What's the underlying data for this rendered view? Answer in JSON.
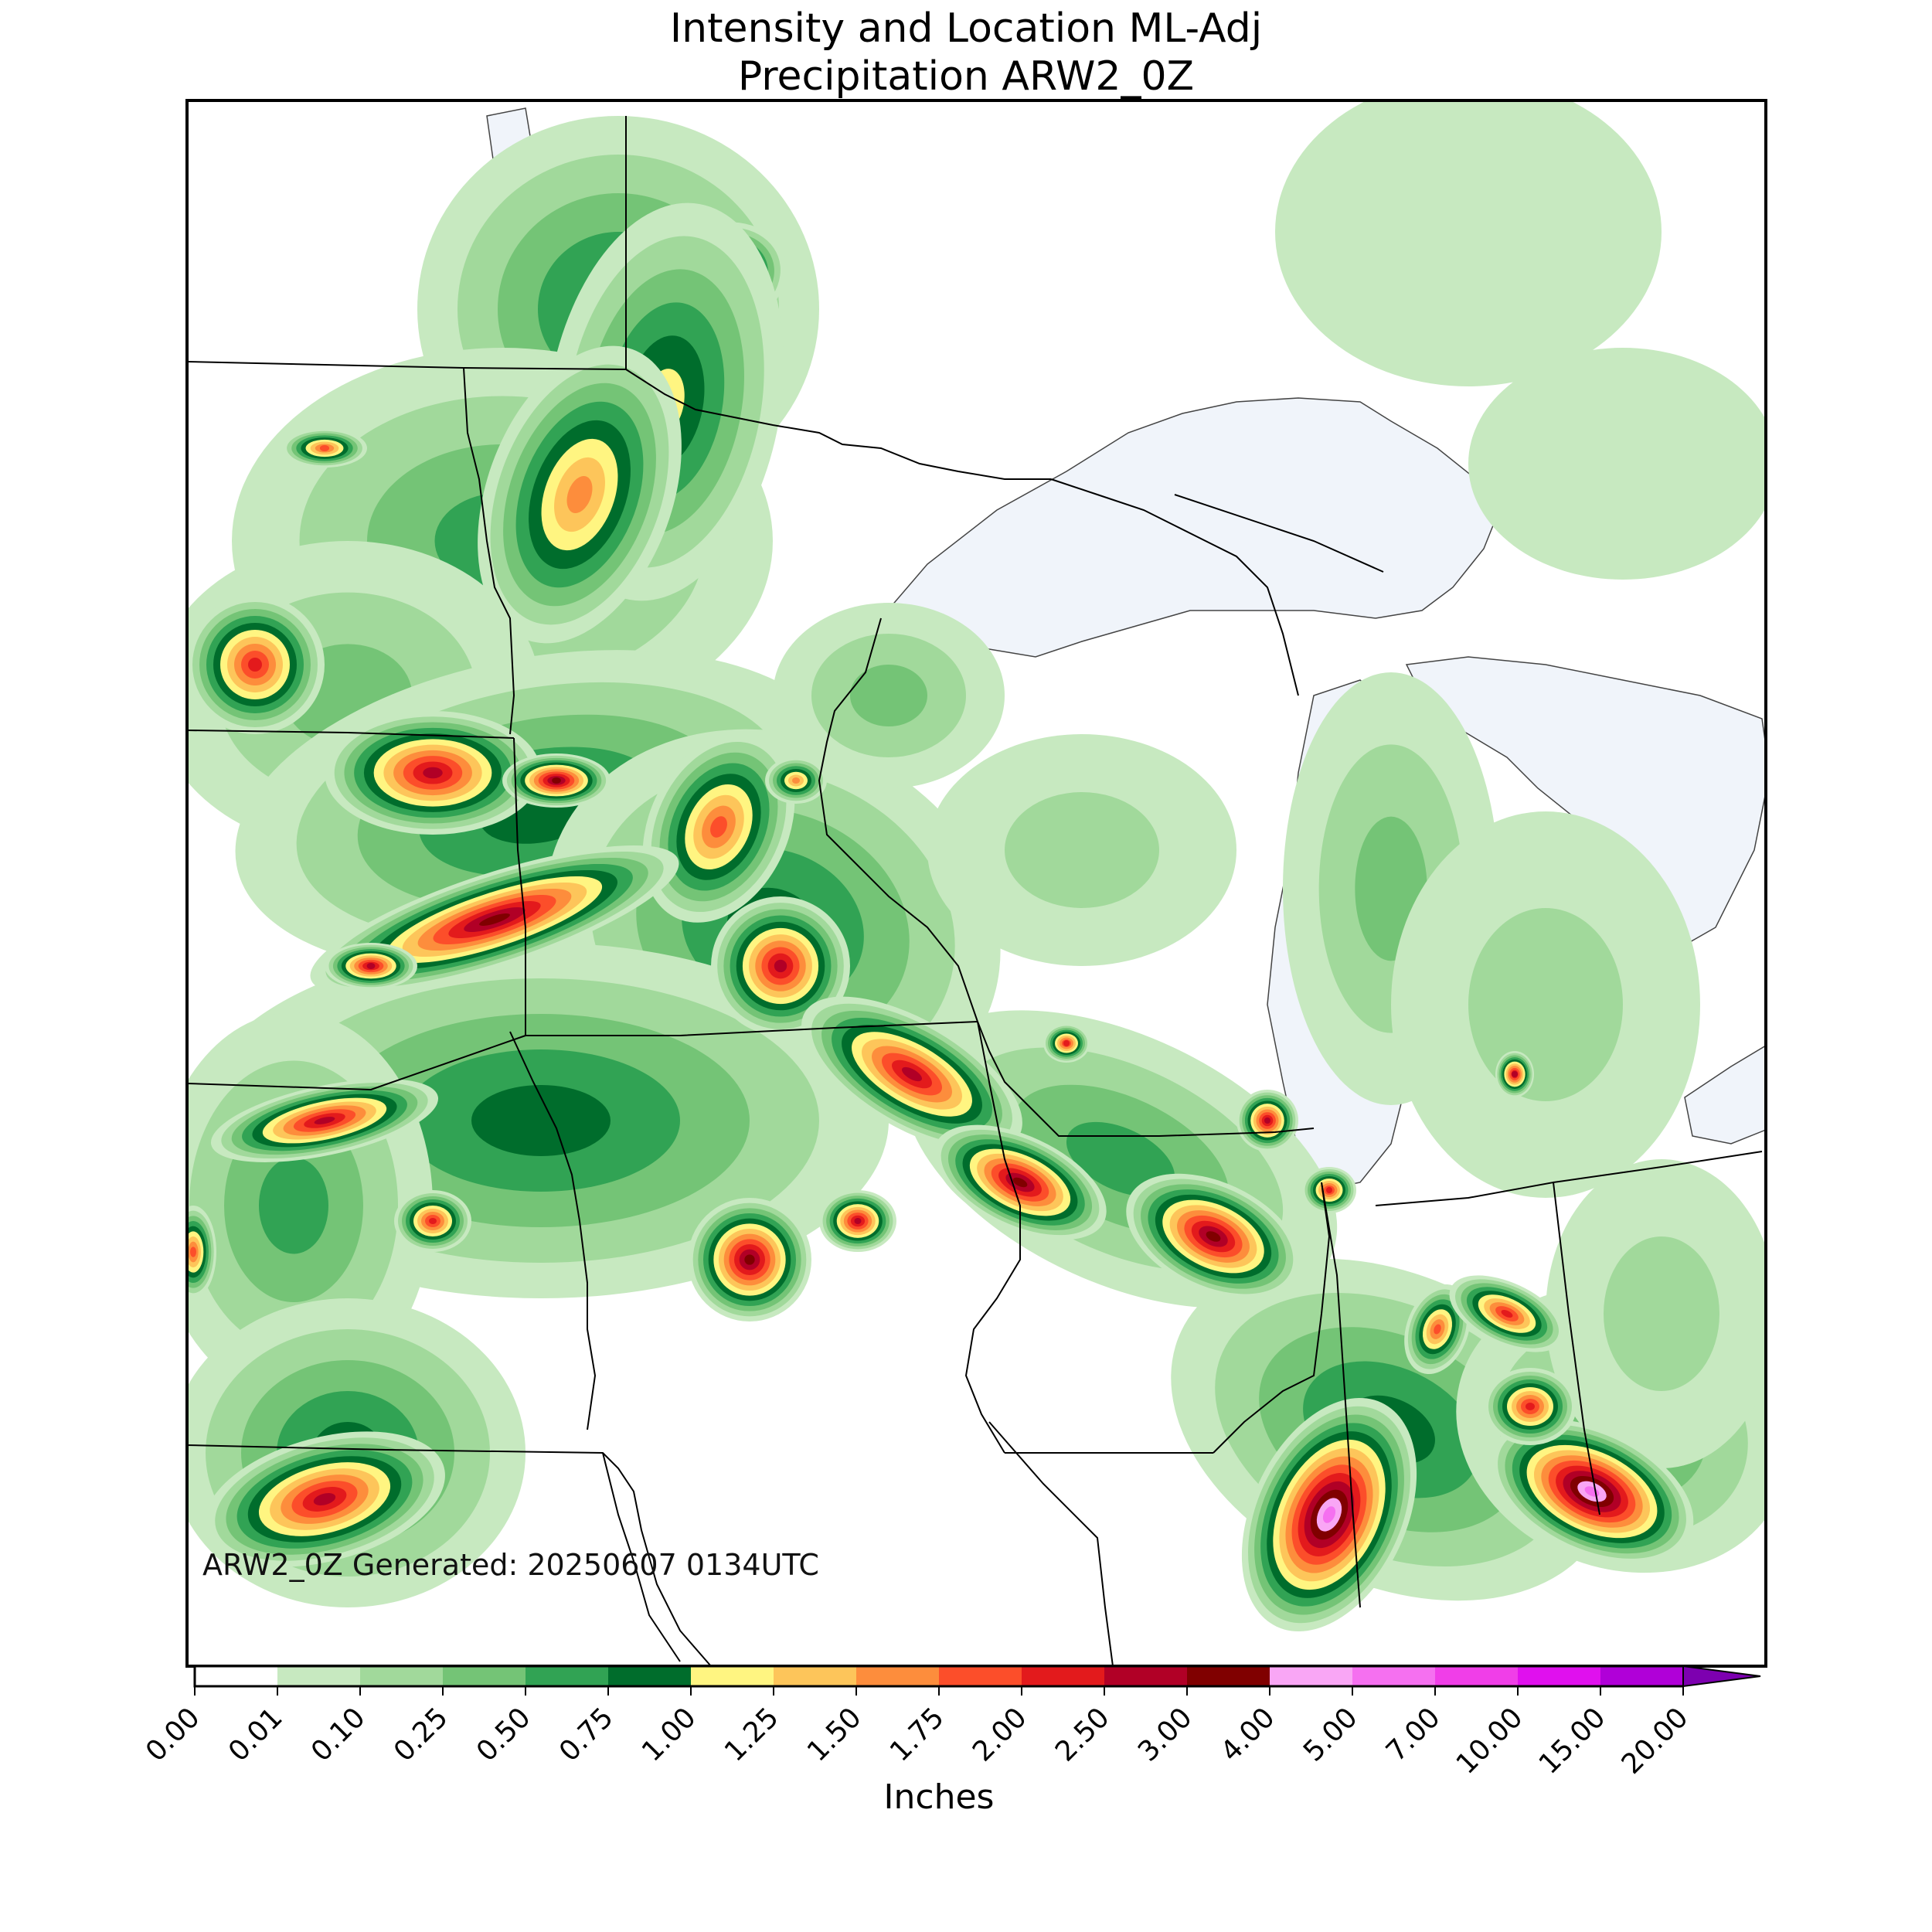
{
  "title": {
    "line1": "Intensity and Location ML-Adj",
    "line2": "Precipitation ARW2_0Z"
  },
  "generated_text": "ARW2_0Z Generated: 20250607 0134UTC",
  "colorbar": {
    "label": "Inches",
    "ticks": [
      "0.00",
      "0.01",
      "0.10",
      "0.25",
      "0.50",
      "0.75",
      "1.00",
      "1.25",
      "1.50",
      "1.75",
      "2.00",
      "2.50",
      "3.00",
      "4.00",
      "5.00",
      "7.00",
      "10.00",
      "15.00",
      "20.00"
    ],
    "colors": [
      "#ffffff",
      "#c7e9c0",
      "#a1d99b",
      "#74c476",
      "#31a354",
      "#006d2c",
      "#fff581",
      "#fdc55a",
      "#fd8d3c",
      "#fc4e2a",
      "#e31a1c",
      "#b10026",
      "#800000",
      "#f9a6f5",
      "#f570f0",
      "#f03ee8",
      "#e010ee",
      "#b000d8"
    ],
    "extend_color": "#7d00b0"
  },
  "map_colors": {
    "water": "#f0f4fa",
    "land": "#ffffff",
    "border": "#000000"
  }
}
